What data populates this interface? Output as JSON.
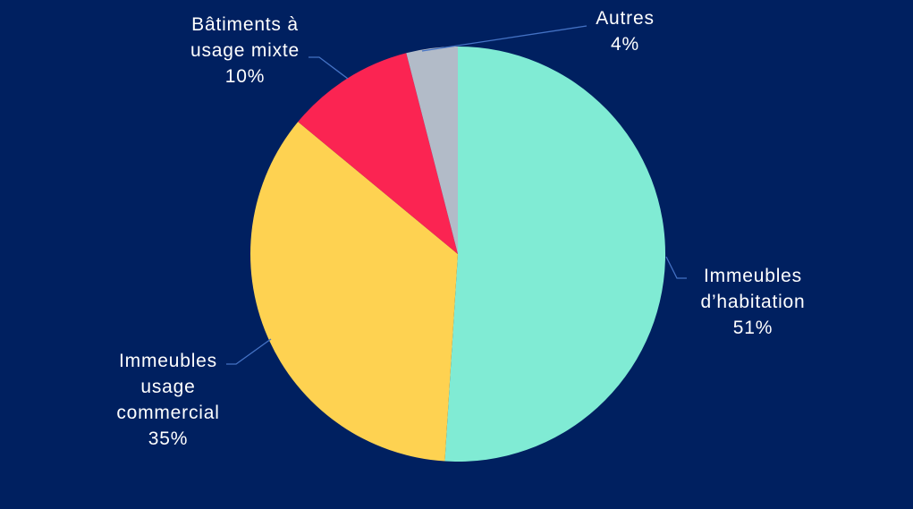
{
  "chart_data": {
    "type": "pie",
    "title": "",
    "unit": "%",
    "legend": "none",
    "label_style": "outside-callout",
    "start_angle_deg": 0,
    "direction": "clockwise",
    "slices": [
      {
        "id": "immeubles-habitation",
        "label": "Immeubles d’habitation",
        "value_pct": 51,
        "color": "#80EBD4",
        "label_lines": [
          "Immeubles",
          "d’habitation",
          "51%"
        ]
      },
      {
        "id": "immeubles-usage-commercial",
        "label": "Immeubles usage commercial",
        "value_pct": 35,
        "color": "#FED251",
        "label_lines": [
          "Immeubles",
          "usage",
          "commercial",
          "35%"
        ]
      },
      {
        "id": "batiments-usage-mixte",
        "label": "Bâtiments à usage mixte",
        "value_pct": 10,
        "color": "#FB2452",
        "label_lines": [
          "Bâtiments à",
          "usage mixte",
          "10%"
        ]
      },
      {
        "id": "autres",
        "label": "Autres",
        "value_pct": 4,
        "color": "#B2BBC8",
        "label_lines": [
          "Autres",
          "4%"
        ]
      }
    ],
    "colors": {
      "background": "#002060",
      "label_text": "#FFFFFF",
      "leader_line": "#4472C4"
    }
  }
}
